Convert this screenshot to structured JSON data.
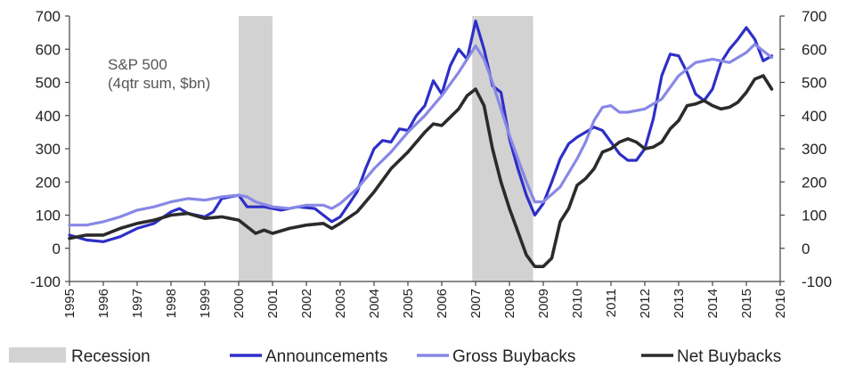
{
  "chart_data": {
    "type": "line",
    "title": "",
    "annotation_lines": [
      "S&P 500",
      "(4qtr sum, $bn)"
    ],
    "x_ticks": [
      "1995",
      "1996",
      "1997",
      "1998",
      "1999",
      "2000",
      "2001",
      "2002",
      "2003",
      "2004",
      "2005",
      "2006",
      "2007",
      "2008",
      "2009",
      "2010",
      "2011",
      "2012",
      "2013",
      "2014",
      "2015",
      "2016"
    ],
    "xlim": [
      1995,
      2016
    ],
    "ylim": [
      -100,
      700
    ],
    "y_ticks": [
      -100,
      0,
      100,
      200,
      300,
      400,
      500,
      600,
      700
    ],
    "y_tick_labels": [
      "-100",
      "0",
      "100",
      "200",
      "300",
      "400",
      "500",
      "600",
      "700"
    ],
    "dual_axis": true,
    "grid": false,
    "legend_position": "bottom",
    "recessions": [
      {
        "start": 2000.0,
        "end": 2001.0
      },
      {
        "start": 2006.9,
        "end": 2008.7
      }
    ],
    "legend": [
      {
        "label": "Recession",
        "kind": "box",
        "color": "#d2d2d2"
      },
      {
        "label": "Announcements",
        "kind": "line",
        "color": "#2e2ec8"
      },
      {
        "label": "Gross Buybacks",
        "kind": "line",
        "color": "#8888e6"
      },
      {
        "label": "Net Buybacks",
        "kind": "line",
        "color": "#2b2b2b"
      }
    ],
    "series": [
      {
        "name": "Announcements",
        "color": "#2e2ec8",
        "width": 3.2,
        "points": [
          [
            1995.0,
            40
          ],
          [
            1995.5,
            25
          ],
          [
            1996.0,
            20
          ],
          [
            1996.5,
            35
          ],
          [
            1997.0,
            60
          ],
          [
            1997.5,
            75
          ],
          [
            1998.0,
            110
          ],
          [
            1998.25,
            120
          ],
          [
            1998.5,
            105
          ],
          [
            1999.0,
            95
          ],
          [
            1999.25,
            110
          ],
          [
            1999.5,
            150
          ],
          [
            2000.0,
            160
          ],
          [
            2000.25,
            125
          ],
          [
            2000.75,
            125
          ],
          [
            2001.25,
            115
          ],
          [
            2001.75,
            125
          ],
          [
            2002.25,
            120
          ],
          [
            2002.75,
            80
          ],
          [
            2003.0,
            95
          ],
          [
            2003.5,
            170
          ],
          [
            2003.75,
            240
          ],
          [
            2004.0,
            300
          ],
          [
            2004.25,
            325
          ],
          [
            2004.5,
            320
          ],
          [
            2004.75,
            360
          ],
          [
            2005.0,
            355
          ],
          [
            2005.25,
            400
          ],
          [
            2005.5,
            430
          ],
          [
            2005.75,
            505
          ],
          [
            2006.0,
            465
          ],
          [
            2006.25,
            550
          ],
          [
            2006.5,
            600
          ],
          [
            2006.75,
            570
          ],
          [
            2007.0,
            685
          ],
          [
            2007.25,
            600
          ],
          [
            2007.5,
            490
          ],
          [
            2007.75,
            470
          ],
          [
            2008.0,
            330
          ],
          [
            2008.25,
            240
          ],
          [
            2008.5,
            160
          ],
          [
            2008.75,
            100
          ],
          [
            2009.0,
            135
          ],
          [
            2009.25,
            200
          ],
          [
            2009.5,
            270
          ],
          [
            2009.75,
            315
          ],
          [
            2010.0,
            335
          ],
          [
            2010.25,
            350
          ],
          [
            2010.5,
            365
          ],
          [
            2010.75,
            355
          ],
          [
            2011.0,
            320
          ],
          [
            2011.25,
            285
          ],
          [
            2011.5,
            265
          ],
          [
            2011.75,
            265
          ],
          [
            2012.0,
            300
          ],
          [
            2012.25,
            390
          ],
          [
            2012.5,
            520
          ],
          [
            2012.75,
            585
          ],
          [
            2013.0,
            580
          ],
          [
            2013.25,
            530
          ],
          [
            2013.5,
            465
          ],
          [
            2013.75,
            445
          ],
          [
            2014.0,
            480
          ],
          [
            2014.25,
            560
          ],
          [
            2014.5,
            600
          ],
          [
            2014.75,
            630
          ],
          [
            2015.0,
            665
          ],
          [
            2015.25,
            630
          ],
          [
            2015.5,
            565
          ],
          [
            2015.75,
            580
          ]
        ]
      },
      {
        "name": "Gross Buybacks",
        "color": "#8888e6",
        "width": 3.2,
        "points": [
          [
            1995.0,
            70
          ],
          [
            1995.5,
            70
          ],
          [
            1996.0,
            80
          ],
          [
            1996.5,
            95
          ],
          [
            1997.0,
            115
          ],
          [
            1997.5,
            125
          ],
          [
            1998.0,
            140
          ],
          [
            1998.5,
            150
          ],
          [
            1999.0,
            145
          ],
          [
            1999.5,
            155
          ],
          [
            2000.0,
            160
          ],
          [
            2000.25,
            155
          ],
          [
            2000.5,
            140
          ],
          [
            2001.0,
            125
          ],
          [
            2001.5,
            120
          ],
          [
            2002.0,
            130
          ],
          [
            2002.5,
            130
          ],
          [
            2002.75,
            120
          ],
          [
            2003.0,
            135
          ],
          [
            2003.5,
            180
          ],
          [
            2004.0,
            240
          ],
          [
            2004.5,
            290
          ],
          [
            2005.0,
            350
          ],
          [
            2005.5,
            400
          ],
          [
            2006.0,
            460
          ],
          [
            2006.5,
            530
          ],
          [
            2007.0,
            610
          ],
          [
            2007.25,
            570
          ],
          [
            2007.5,
            500
          ],
          [
            2008.0,
            340
          ],
          [
            2008.5,
            200
          ],
          [
            2008.75,
            140
          ],
          [
            2009.0,
            140
          ],
          [
            2009.5,
            185
          ],
          [
            2010.0,
            270
          ],
          [
            2010.25,
            320
          ],
          [
            2010.5,
            385
          ],
          [
            2010.75,
            425
          ],
          [
            2011.0,
            430
          ],
          [
            2011.25,
            410
          ],
          [
            2011.5,
            410
          ],
          [
            2012.0,
            420
          ],
          [
            2012.5,
            450
          ],
          [
            2013.0,
            520
          ],
          [
            2013.5,
            560
          ],
          [
            2014.0,
            570
          ],
          [
            2014.5,
            560
          ],
          [
            2015.0,
            590
          ],
          [
            2015.25,
            615
          ],
          [
            2015.5,
            595
          ],
          [
            2015.75,
            575
          ]
        ]
      },
      {
        "name": "Net Buybacks",
        "color": "#2b2b2b",
        "width": 3.6,
        "points": [
          [
            1995.0,
            30
          ],
          [
            1995.5,
            40
          ],
          [
            1996.0,
            40
          ],
          [
            1996.5,
            60
          ],
          [
            1997.0,
            75
          ],
          [
            1997.5,
            85
          ],
          [
            1998.0,
            100
          ],
          [
            1998.5,
            105
          ],
          [
            1999.0,
            90
          ],
          [
            1999.5,
            95
          ],
          [
            2000.0,
            85
          ],
          [
            2000.25,
            65
          ],
          [
            2000.5,
            45
          ],
          [
            2000.75,
            55
          ],
          [
            2001.0,
            45
          ],
          [
            2001.5,
            60
          ],
          [
            2002.0,
            70
          ],
          [
            2002.5,
            75
          ],
          [
            2002.75,
            60
          ],
          [
            2003.0,
            75
          ],
          [
            2003.5,
            110
          ],
          [
            2004.0,
            170
          ],
          [
            2004.5,
            240
          ],
          [
            2005.0,
            290
          ],
          [
            2005.5,
            350
          ],
          [
            2005.75,
            375
          ],
          [
            2006.0,
            370
          ],
          [
            2006.5,
            420
          ],
          [
            2006.75,
            460
          ],
          [
            2007.0,
            480
          ],
          [
            2007.25,
            430
          ],
          [
            2007.5,
            300
          ],
          [
            2007.75,
            200
          ],
          [
            2008.0,
            120
          ],
          [
            2008.25,
            50
          ],
          [
            2008.5,
            -20
          ],
          [
            2008.75,
            -55
          ],
          [
            2009.0,
            -55
          ],
          [
            2009.25,
            -30
          ],
          [
            2009.5,
            80
          ],
          [
            2009.75,
            120
          ],
          [
            2010.0,
            190
          ],
          [
            2010.25,
            210
          ],
          [
            2010.5,
            240
          ],
          [
            2010.75,
            290
          ],
          [
            2011.0,
            300
          ],
          [
            2011.25,
            320
          ],
          [
            2011.5,
            330
          ],
          [
            2011.75,
            320
          ],
          [
            2012.0,
            300
          ],
          [
            2012.25,
            305
          ],
          [
            2012.5,
            320
          ],
          [
            2012.75,
            360
          ],
          [
            2013.0,
            385
          ],
          [
            2013.25,
            430
          ],
          [
            2013.5,
            435
          ],
          [
            2013.75,
            445
          ],
          [
            2014.0,
            430
          ],
          [
            2014.25,
            420
          ],
          [
            2014.5,
            425
          ],
          [
            2014.75,
            440
          ],
          [
            2015.0,
            470
          ],
          [
            2015.25,
            510
          ],
          [
            2015.5,
            520
          ],
          [
            2015.75,
            480
          ]
        ]
      }
    ]
  }
}
